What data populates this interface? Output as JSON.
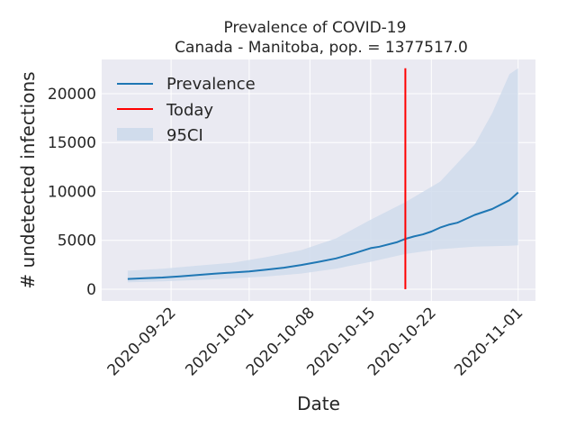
{
  "chart_data": {
    "type": "line",
    "title": "Prevalence of COVID-19",
    "subtitle": "Canada - Manitoba, pop. = 1377517.0",
    "xlabel": "Date",
    "ylabel": "# undetected infections",
    "x_ticks": [
      "2020-09-22",
      "2020-10-01",
      "2020-10-08",
      "2020-10-15",
      "2020-10-22",
      "2020-11-01"
    ],
    "y_ticks": [
      0,
      5000,
      10000,
      15000,
      20000
    ],
    "xlim": [
      "2020-09-14",
      "2020-11-03"
    ],
    "ylim": [
      -1200,
      23500
    ],
    "grid": true,
    "legend_position": "top-left",
    "legend": [
      {
        "label": "Prevalence",
        "color": "#1f77b4"
      },
      {
        "label": "Today",
        "color": "#ff0000"
      },
      {
        "label": "95CI",
        "color": "#d0dcec"
      }
    ],
    "series": [
      {
        "name": "Prevalence",
        "color": "#1f77b4",
        "x": [
          "2020-09-17",
          "2020-09-19",
          "2020-09-21",
          "2020-09-23",
          "2020-09-25",
          "2020-09-27",
          "2020-09-29",
          "2020-10-01",
          "2020-10-03",
          "2020-10-05",
          "2020-10-07",
          "2020-10-09",
          "2020-10-11",
          "2020-10-13",
          "2020-10-15",
          "2020-10-16",
          "2020-10-18",
          "2020-10-19",
          "2020-10-20",
          "2020-10-21",
          "2020-10-22",
          "2020-10-23",
          "2020-10-24",
          "2020-10-25",
          "2020-10-27",
          "2020-10-29",
          "2020-10-31",
          "2020-11-01"
        ],
        "values": [
          1050,
          1120,
          1200,
          1320,
          1450,
          1580,
          1700,
          1820,
          2000,
          2200,
          2480,
          2800,
          3150,
          3650,
          4200,
          4350,
          4800,
          5150,
          5400,
          5600,
          5900,
          6300,
          6600,
          6800,
          7600,
          8200,
          9100,
          9900
        ]
      }
    ],
    "ci_band": {
      "name": "95CI",
      "color": "#d0dcec",
      "x": [
        "2020-09-17",
        "2020-09-21",
        "2020-09-25",
        "2020-09-29",
        "2020-10-03",
        "2020-10-07",
        "2020-10-11",
        "2020-10-15",
        "2020-10-19",
        "2020-10-23",
        "2020-10-27",
        "2020-10-29",
        "2020-10-31",
        "2020-11-01"
      ],
      "upper": [
        1900,
        2100,
        2400,
        2700,
        3300,
        4000,
        5200,
        7100,
        8900,
        11000,
        14800,
        18000,
        22000,
        22600
      ],
      "lower": [
        700,
        800,
        950,
        1100,
        1300,
        1600,
        2100,
        2800,
        3600,
        4100,
        4350,
        4400,
        4450,
        4500
      ]
    },
    "today": {
      "label": "Today",
      "date": "2020-10-19",
      "y_range": [
        0,
        22600
      ],
      "color": "#ff0000"
    }
  }
}
